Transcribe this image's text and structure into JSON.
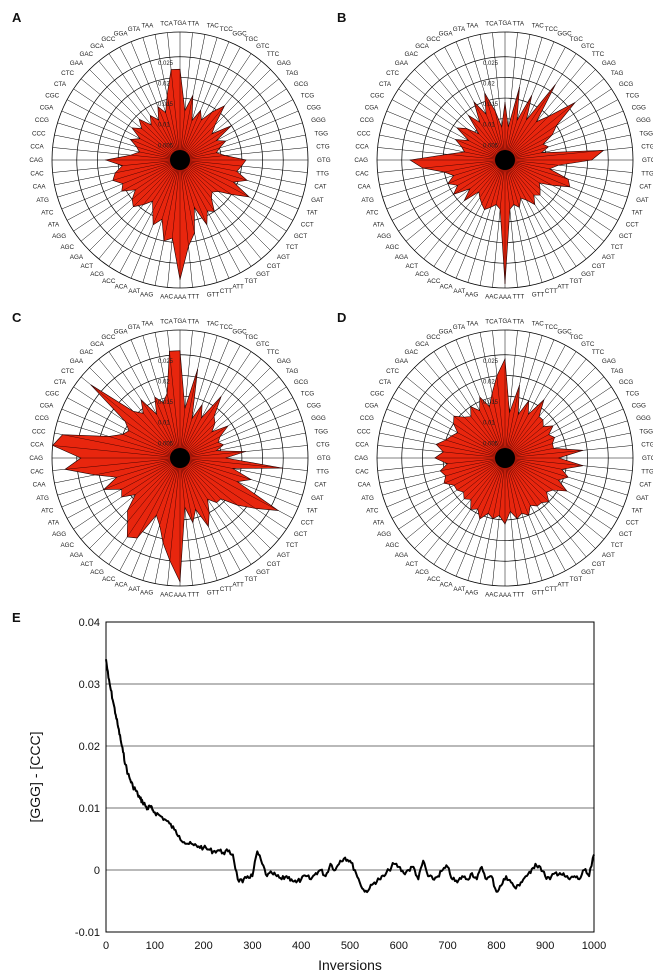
{
  "panels": {
    "a": "A",
    "b": "B",
    "c": "C",
    "d": "D",
    "e": "E"
  },
  "colors": {
    "radar_fill": "#e8260e",
    "radar_stroke": "#1a0000",
    "grid": "#000000",
    "line": "#000000"
  },
  "radar": {
    "codons": [
      "TGA",
      "TTA",
      "TAC",
      "TCC",
      "GGC",
      "TGC",
      "GTC",
      "TTC",
      "GAG",
      "TAG",
      "GCG",
      "TCG",
      "CGG",
      "GGG",
      "TGG",
      "CTG",
      "GTG",
      "TTG",
      "CAT",
      "GAT",
      "TAT",
      "CCT",
      "GCT",
      "TCT",
      "AGT",
      "CGT",
      "GGT",
      "TGT",
      "ATT",
      "CTT",
      "GTT",
      "TTT",
      "AAA",
      "AAC",
      "AAG",
      "AAT",
      "ACA",
      "ACC",
      "ACG",
      "ACT",
      "AGA",
      "AGC",
      "AGG",
      "ATA",
      "ATC",
      "ATG",
      "CAA",
      "CAC",
      "CAG",
      "CCA",
      "CCC",
      "CCG",
      "CGA",
      "CGC",
      "CTA",
      "CTC",
      "GAA",
      "GAC",
      "GCA",
      "GCC",
      "GGA",
      "GTA",
      "TAA",
      "TCA"
    ],
    "ring_labels": [
      "0.025",
      "0.02",
      "0.015",
      "0.01",
      "0.005"
    ],
    "rmax": 0.031,
    "series": {
      "A": [
        0.022,
        0.012,
        0.016,
        0.01,
        0.013,
        0.011,
        0.014,
        0.017,
        0.012,
        0.01,
        0.015,
        0.01,
        0.012,
        0.01,
        0.009,
        0.011,
        0.016,
        0.015,
        0.014,
        0.017,
        0.014,
        0.019,
        0.015,
        0.012,
        0.011,
        0.012,
        0.015,
        0.014,
        0.017,
        0.012,
        0.018,
        0.021,
        0.029,
        0.019,
        0.02,
        0.015,
        0.017,
        0.014,
        0.012,
        0.014,
        0.016,
        0.015,
        0.013,
        0.016,
        0.015,
        0.017,
        0.016,
        0.014,
        0.018,
        0.012,
        0.01,
        0.011,
        0.013,
        0.011,
        0.014,
        0.012,
        0.014,
        0.011,
        0.013,
        0.011,
        0.014,
        0.012,
        0.016,
        0.022
      ],
      "B": [
        0.014,
        0.008,
        0.018,
        0.01,
        0.017,
        0.011,
        0.022,
        0.012,
        0.015,
        0.022,
        0.015,
        0.013,
        0.01,
        0.011,
        0.009,
        0.024,
        0.021,
        0.013,
        0.011,
        0.016,
        0.017,
        0.013,
        0.01,
        0.011,
        0.012,
        0.011,
        0.013,
        0.011,
        0.01,
        0.012,
        0.011,
        0.012,
        0.03,
        0.012,
        0.011,
        0.012,
        0.013,
        0.012,
        0.011,
        0.01,
        0.014,
        0.011,
        0.015,
        0.013,
        0.015,
        0.013,
        0.015,
        0.02,
        0.023,
        0.014,
        0.01,
        0.011,
        0.013,
        0.01,
        0.014,
        0.012,
        0.009,
        0.014,
        0.011,
        0.016,
        0.012,
        0.017,
        0.012,
        0.008
      ],
      "C": [
        0.026,
        0.012,
        0.022,
        0.01,
        0.014,
        0.011,
        0.018,
        0.013,
        0.012,
        0.01,
        0.014,
        0.011,
        0.01,
        0.011,
        0.009,
        0.016,
        0.011,
        0.025,
        0.013,
        0.018,
        0.015,
        0.027,
        0.022,
        0.018,
        0.014,
        0.014,
        0.012,
        0.015,
        0.018,
        0.013,
        0.016,
        0.012,
        0.03,
        0.025,
        0.021,
        0.017,
        0.015,
        0.022,
        0.023,
        0.02,
        0.018,
        0.014,
        0.017,
        0.016,
        0.02,
        0.016,
        0.021,
        0.028,
        0.024,
        0.032,
        0.029,
        0.018,
        0.015,
        0.014,
        0.016,
        0.028,
        0.016,
        0.014,
        0.017,
        0.012,
        0.016,
        0.014,
        0.016,
        0.026
      ],
      "D": [
        0.024,
        0.011,
        0.018,
        0.011,
        0.015,
        0.012,
        0.017,
        0.013,
        0.013,
        0.012,
        0.014,
        0.012,
        0.013,
        0.012,
        0.012,
        0.019,
        0.013,
        0.019,
        0.014,
        0.016,
        0.014,
        0.017,
        0.014,
        0.013,
        0.015,
        0.014,
        0.014,
        0.013,
        0.015,
        0.014,
        0.015,
        0.013,
        0.016,
        0.014,
        0.015,
        0.014,
        0.016,
        0.014,
        0.015,
        0.013,
        0.014,
        0.013,
        0.014,
        0.014,
        0.016,
        0.015,
        0.016,
        0.014,
        0.017,
        0.015,
        0.017,
        0.015,
        0.014,
        0.013,
        0.015,
        0.016,
        0.014,
        0.013,
        0.015,
        0.013,
        0.016,
        0.013,
        0.016,
        0.02
      ]
    }
  },
  "chart_data": [
    {
      "type": "radar",
      "panel": "A",
      "title": "",
      "categories_ref": "radar.codons",
      "values_ref": "radar.series.A",
      "rlim": [
        0,
        0.031
      ],
      "grid": true
    },
    {
      "type": "radar",
      "panel": "B",
      "title": "",
      "categories_ref": "radar.codons",
      "values_ref": "radar.series.B",
      "rlim": [
        0,
        0.031
      ],
      "grid": true
    },
    {
      "type": "radar",
      "panel": "C",
      "title": "",
      "categories_ref": "radar.codons",
      "values_ref": "radar.series.C",
      "rlim": [
        0,
        0.031
      ],
      "grid": true
    },
    {
      "type": "radar",
      "panel": "D",
      "title": "",
      "categories_ref": "radar.codons",
      "values_ref": "radar.series.D",
      "rlim": [
        0,
        0.031
      ],
      "grid": true
    },
    {
      "type": "line",
      "panel": "E",
      "title": "",
      "xlabel": "Inversions",
      "ylabel": "[GGG] - [CCC]",
      "xlim": [
        0,
        1000
      ],
      "ylim": [
        -0.01,
        0.04
      ],
      "x_ticks": [
        "0",
        "100",
        "200",
        "300",
        "400",
        "500",
        "600",
        "700",
        "800",
        "900",
        "1000"
      ],
      "y_ticks": [
        "-0.01",
        "0",
        "0.01",
        "0.02",
        "0.03",
        "0.04"
      ],
      "grid": "horizontal",
      "series": [
        {
          "x": [
            0,
            5,
            10,
            15,
            20,
            25,
            30,
            35,
            40,
            45,
            50,
            55,
            60,
            65,
            70,
            75,
            80,
            85,
            90,
            95,
            100,
            110,
            120,
            130,
            140,
            150,
            160,
            170,
            180,
            190,
            200,
            210,
            220,
            230,
            240,
            250,
            260,
            270,
            280,
            290,
            300,
            310,
            320,
            330,
            340,
            350,
            360,
            370,
            380,
            390,
            400,
            410,
            420,
            430,
            440,
            450,
            460,
            470,
            480,
            490,
            500,
            510,
            520,
            530,
            540,
            550,
            560,
            570,
            580,
            590,
            600,
            610,
            620,
            630,
            640,
            650,
            660,
            670,
            680,
            690,
            700,
            710,
            720,
            730,
            740,
            750,
            760,
            770,
            780,
            790,
            800,
            810,
            820,
            830,
            840,
            850,
            860,
            870,
            880,
            890,
            900,
            910,
            920,
            930,
            940,
            950,
            960,
            970,
            980,
            990,
            1000
          ],
          "values": [
            0.034,
            0.031,
            0.029,
            0.027,
            0.025,
            0.023,
            0.021,
            0.019,
            0.017,
            0.0155,
            0.0145,
            0.0135,
            0.013,
            0.0122,
            0.0115,
            0.011,
            0.0105,
            0.0098,
            0.0103,
            0.0097,
            0.0093,
            0.0088,
            0.0082,
            0.0075,
            0.0065,
            0.0055,
            0.0045,
            0.0042,
            0.004,
            0.0038,
            0.0036,
            0.0033,
            0.003,
            0.0032,
            0.0028,
            0.003,
            0.0025,
            -0.0015,
            -0.002,
            -0.001,
            -0.001,
            0.003,
            0.001,
            -0.001,
            -0.0005,
            -0.001,
            -0.0015,
            -0.001,
            -0.0015,
            -0.002,
            -0.0015,
            -0.001,
            -0.0015,
            -0.0005,
            0.0,
            -0.001,
            0.001,
            0.0,
            0.0015,
            0.002,
            0.0015,
            0.0,
            -0.002,
            -0.0035,
            -0.003,
            -0.002,
            -0.0015,
            -0.001,
            0.0,
            0.001,
            0.0005,
            -0.0005,
            0.0,
            0.0005,
            -0.0015,
            0.0015,
            -0.001,
            -0.0015,
            -0.001,
            0.0,
            0.0005,
            -0.0015,
            -0.002,
            -0.001,
            -0.0015,
            -0.0005,
            -0.0015,
            0.0005,
            -0.0015,
            -0.001,
            -0.0035,
            -0.0025,
            -0.001,
            -0.002,
            -0.003,
            -0.002,
            -0.001,
            -0.0005,
            0.001,
            0.0005,
            -0.001,
            -0.0015,
            -0.0005,
            -0.0005,
            -0.001,
            -0.0015,
            -0.001,
            -0.0015,
            0.0,
            -0.001,
            0.0025
          ]
        }
      ]
    }
  ]
}
